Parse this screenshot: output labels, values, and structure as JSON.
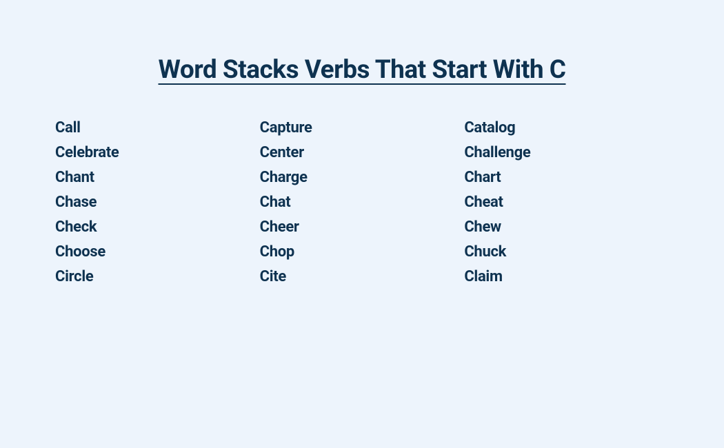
{
  "title": "Word Stacks Verbs That Start With C",
  "words": {
    "col1": [
      "Call",
      "Celebrate",
      "Chant",
      "Chase",
      "Check",
      "Choose",
      "Circle"
    ],
    "col2": [
      "Capture",
      "Center",
      "Charge",
      "Chat",
      "Cheer",
      "Chop",
      "Cite"
    ],
    "col3": [
      "Catalog",
      "Challenge",
      "Chart",
      "Cheat",
      "Chew",
      "Chuck",
      "Claim"
    ]
  },
  "colors": {
    "background": "#edf4fc",
    "text": "#0e3250"
  },
  "typography": {
    "title_fontsize": 37,
    "title_weight": 700,
    "word_fontsize": 22,
    "word_weight": 700
  }
}
